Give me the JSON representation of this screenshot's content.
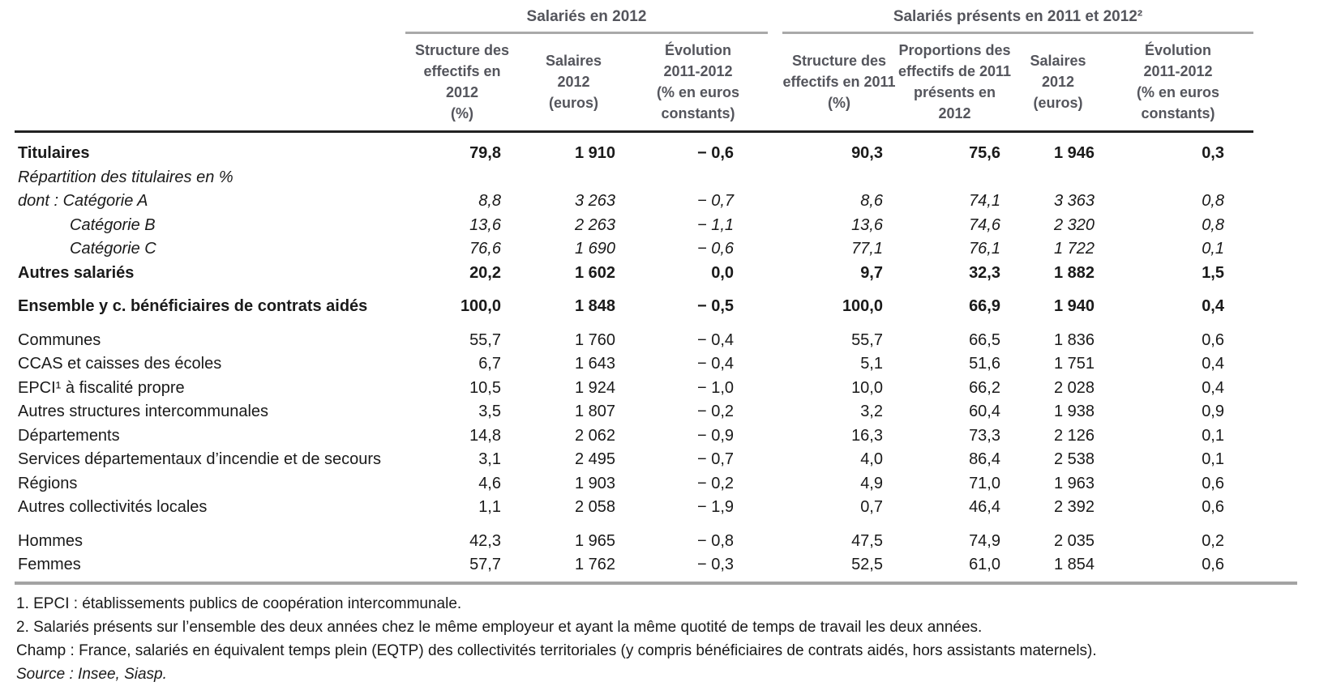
{
  "table": {
    "groups": [
      {
        "label": "Salariés en 2012",
        "colspan": 3
      },
      {
        "label": "Salariés présents en 2011 et 2012²",
        "colspan": 4
      }
    ],
    "columns": [
      {
        "label": "Structure des\neffectifs en 2012\n(%)"
      },
      {
        "label": "Salaires\n2012\n(euros)"
      },
      {
        "label": "Évolution\n2011-2012\n(% en euros constants)"
      },
      {
        "label": "Structure des\neffectifs en 2011\n(%)"
      },
      {
        "label": "Proportions des\neffectifs de 2011\nprésents en 2012"
      },
      {
        "label": "Salaires\n2012\n(euros)"
      },
      {
        "label": "Évolution\n2011-2012\n(% en euros constants)"
      }
    ],
    "rows": [
      {
        "label": "Titulaires",
        "style": "bold",
        "indent": 0,
        "gap_before": false,
        "values": [
          "79,8",
          "1 910",
          "− 0,6",
          "90,3",
          "75,6",
          "1 946",
          "0,3"
        ]
      },
      {
        "label": "Répartition des titulaires en %",
        "style": "italic",
        "indent": 0,
        "gap_before": false,
        "values": [
          "",
          "",
          "",
          "",
          "",
          "",
          ""
        ]
      },
      {
        "label": "dont : Catégorie A",
        "style": "italic",
        "indent": 0,
        "gap_before": false,
        "values": [
          "8,8",
          "3 263",
          "− 0,7",
          "8,6",
          "74,1",
          "3 363",
          "0,8"
        ]
      },
      {
        "label": "Catégorie B",
        "style": "italic",
        "indent": 1,
        "gap_before": false,
        "values": [
          "13,6",
          "2 263",
          "− 1,1",
          "13,6",
          "74,6",
          "2 320",
          "0,8"
        ]
      },
      {
        "label": "Catégorie C",
        "style": "italic",
        "indent": 1,
        "gap_before": false,
        "values": [
          "76,6",
          "1 690",
          "− 0,6",
          "77,1",
          "76,1",
          "1 722",
          "0,1"
        ]
      },
      {
        "label": "Autres salariés",
        "style": "bold",
        "indent": 0,
        "gap_before": false,
        "values": [
          "20,2",
          "1 602",
          "0,0",
          "9,7",
          "32,3",
          "1 882",
          "1,5"
        ]
      },
      {
        "label": "Ensemble y c. bénéficiaires de contrats aidés",
        "style": "bold",
        "indent": 0,
        "gap_before": true,
        "values": [
          "100,0",
          "1 848",
          "− 0,5",
          "100,0",
          "66,9",
          "1 940",
          "0,4"
        ]
      },
      {
        "label": "Communes",
        "style": "plain",
        "indent": 0,
        "gap_before": true,
        "values": [
          "55,7",
          "1 760",
          "− 0,4",
          "55,7",
          "66,5",
          "1 836",
          "0,6"
        ]
      },
      {
        "label": "CCAS et caisses des écoles",
        "style": "plain",
        "indent": 0,
        "gap_before": false,
        "values": [
          "6,7",
          "1 643",
          "− 0,4",
          "5,1",
          "51,6",
          "1 751",
          "0,4"
        ]
      },
      {
        "label": "EPCI¹ à fiscalité propre",
        "style": "plain",
        "indent": 0,
        "gap_before": false,
        "values": [
          "10,5",
          "1 924",
          "− 1,0",
          "10,0",
          "66,2",
          "2 028",
          "0,4"
        ]
      },
      {
        "label": "Autres structures intercommunales",
        "style": "plain",
        "indent": 0,
        "gap_before": false,
        "values": [
          "3,5",
          "1 807",
          "− 0,2",
          "3,2",
          "60,4",
          "1 938",
          "0,9"
        ]
      },
      {
        "label": "Départements",
        "style": "plain",
        "indent": 0,
        "gap_before": false,
        "values": [
          "14,8",
          "2 062",
          "− 0,9",
          "16,3",
          "73,3",
          "2 126",
          "0,1"
        ]
      },
      {
        "label": "Services départementaux d’incendie et de secours",
        "style": "plain",
        "indent": 0,
        "gap_before": false,
        "values": [
          "3,1",
          "2 495",
          "− 0,7",
          "4,0",
          "86,4",
          "2 538",
          "0,1"
        ]
      },
      {
        "label": "Régions",
        "style": "plain",
        "indent": 0,
        "gap_before": false,
        "values": [
          "4,6",
          "1 903",
          "− 0,2",
          "4,9",
          "71,0",
          "1 963",
          "0,6"
        ]
      },
      {
        "label": "Autres collectivités locales",
        "style": "plain",
        "indent": 0,
        "gap_before": false,
        "values": [
          "1,1",
          "2 058",
          "− 1,9",
          "0,7",
          "46,4",
          "2 392",
          "0,6"
        ]
      },
      {
        "label": "Hommes",
        "style": "plain",
        "indent": 0,
        "gap_before": true,
        "values": [
          "42,3",
          "1 965",
          "− 0,8",
          "47,5",
          "74,9",
          "2 035",
          "0,2"
        ]
      },
      {
        "label": "Femmes",
        "style": "plain",
        "indent": 0,
        "gap_before": false,
        "values": [
          "57,7",
          "1 762",
          "− 0,3",
          "52,5",
          "61,0",
          "1 854",
          "0,6"
        ]
      }
    ]
  },
  "footnotes": {
    "note1": "1. EPCI : établissements publics de coopération intercommunale.",
    "note2": "2. Salariés présents sur l’ensemble des deux années chez le même employeur et ayant la même quotité de temps de travail les deux années.",
    "champ": "Champ : France, salariés en équivalent temps plein (EQTP) des collectivités territoriales (y compris bénéficiaires de contrats aidés, hors assistants maternels).",
    "source": "Source : Insee, Siasp."
  },
  "colors": {
    "header_text": "#54555c",
    "group_rule": "#a9a9a9",
    "header_rule": "#222222",
    "footer_rule": "#a3a3a3",
    "body_text": "#1a1a1a"
  }
}
